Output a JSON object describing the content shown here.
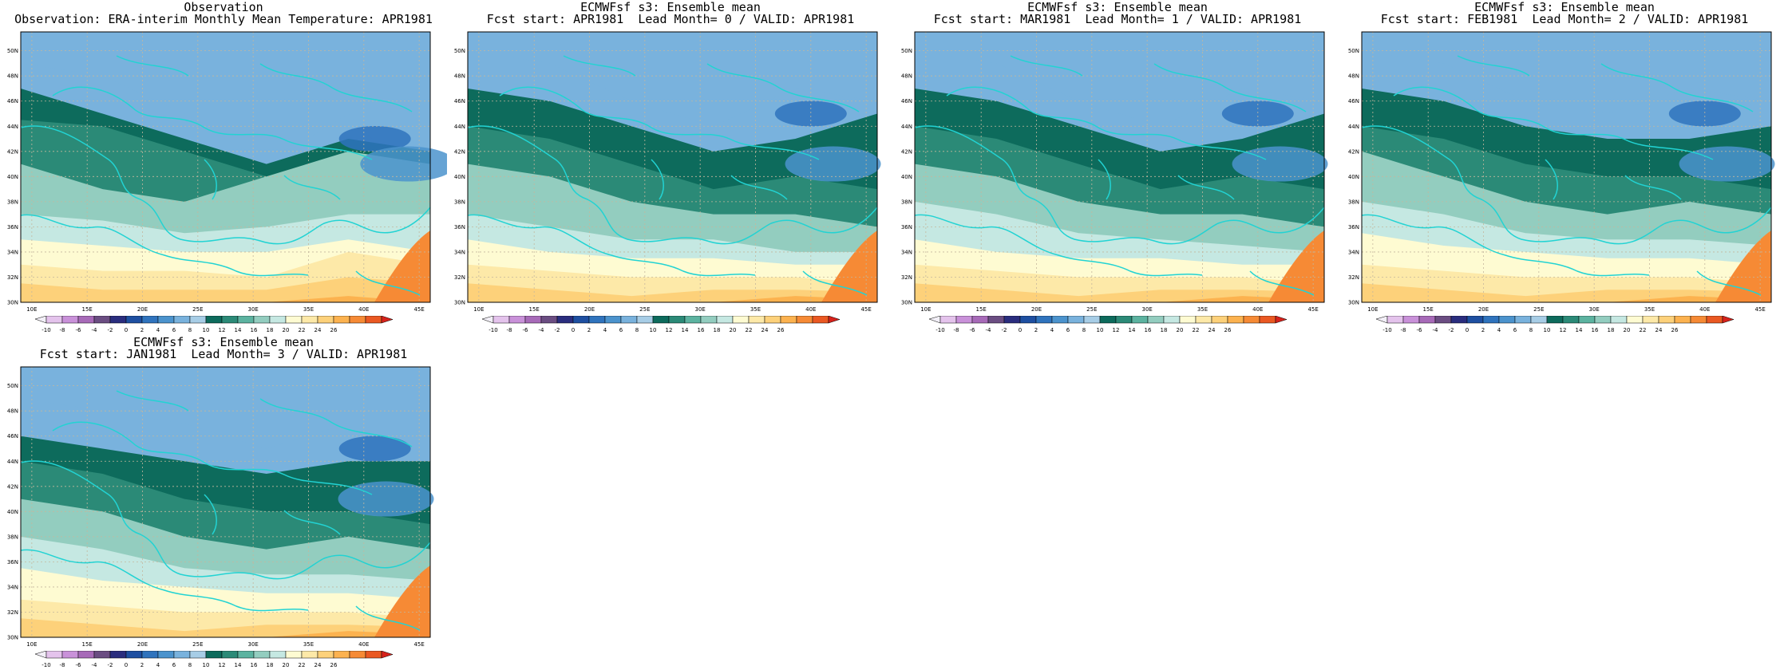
{
  "colors": {
    "levels": [
      -10,
      -8,
      -6,
      -4,
      -2,
      0,
      2,
      4,
      6,
      8,
      10,
      12,
      14,
      16,
      18,
      20,
      22,
      24,
      26
    ],
    "fills": [
      "#f2eff7",
      "#e4c3ec",
      "#c991d9",
      "#a76ab8",
      "#6b4d82",
      "#2a2d7e",
      "#1e4fa1",
      "#2f73bd",
      "#4b93cd",
      "#79b2dd",
      "#a7cde6",
      "#0d6b5c",
      "#2b8a77",
      "#5cb3a0",
      "#93cdbf",
      "#c5e8e2",
      "#fefbd2",
      "#fde9a8",
      "#fdd17a",
      "#fcb24f",
      "#f68a35",
      "#ea5822",
      "#d6221b"
    ],
    "coast": "#22d3d3",
    "grid": "#c4b79d"
  },
  "axes": {
    "lon_ticks": [
      "10E",
      "15E",
      "20E",
      "25E",
      "30E",
      "35E",
      "40E",
      "45E"
    ],
    "lat_ticks": [
      "30N",
      "32N",
      "34N",
      "36N",
      "38N",
      "40N",
      "42N",
      "44N",
      "46N",
      "48N",
      "50N"
    ]
  },
  "colorbar_labels": [
    "-10",
    "-8",
    "-6",
    "-4",
    "-2",
    "0",
    "2",
    "4",
    "6",
    "8",
    "10",
    "12",
    "14",
    "16",
    "18",
    "20",
    "22",
    "24",
    "26"
  ],
  "panels": [
    {
      "title1": "Observation",
      "title2": "Observation: ERA-interim Monthly Mean Temperature: APR1981",
      "bands": [
        [
          49,
          48,
          45,
          41,
          45,
          38
        ],
        [
          47,
          45,
          43,
          41,
          43,
          42
        ],
        [
          44.5,
          44,
          42,
          40,
          41,
          38
        ],
        [
          41,
          39,
          38,
          40,
          42,
          41
        ],
        [
          37,
          36.5,
          35.5,
          36,
          37,
          37
        ],
        [
          35,
          34.5,
          34,
          34,
          35,
          34
        ],
        [
          33,
          32.5,
          32.5,
          32,
          34,
          33
        ],
        [
          31.5,
          31,
          31,
          31,
          32,
          31.5
        ],
        [
          30,
          30,
          30,
          30,
          30.5,
          30
        ]
      ],
      "extra": [
        [
          43,
          41
        ],
        [
          41,
          44
        ]
      ]
    },
    {
      "title1": "ECMWFsf s3: Ensemble mean",
      "title2": "Fcst start: APR1981  Lead Month= 0 / VALID: APR1981",
      "bands": [
        [
          50,
          49,
          46,
          44,
          47,
          46
        ],
        [
          47,
          46,
          44,
          42,
          43,
          45
        ],
        [
          44,
          43,
          41,
          39,
          40,
          39
        ],
        [
          41,
          40,
          38,
          37,
          37,
          36
        ],
        [
          37,
          36,
          35,
          35,
          34,
          34
        ],
        [
          35,
          34,
          33.5,
          33.5,
          33,
          33
        ],
        [
          33,
          32.5,
          32,
          32,
          32,
          31.5
        ],
        [
          31.5,
          31,
          30.5,
          31,
          31,
          30.8
        ],
        [
          30,
          30,
          30,
          30,
          30.5,
          30.2
        ]
      ],
      "extra": [
        [
          45,
          40
        ],
        [
          41,
          42
        ]
      ]
    },
    {
      "title1": "ECMWFsf s3: Ensemble mean",
      "title2": "Fcst start: MAR1981  Lead Month= 1 / VALID: APR1981",
      "bands": [
        [
          50,
          49,
          46,
          44,
          47,
          46
        ],
        [
          47,
          46,
          44,
          42,
          43,
          45
        ],
        [
          44,
          43,
          41,
          39,
          40,
          39
        ],
        [
          41,
          40,
          38,
          37,
          37,
          36
        ],
        [
          38,
          37,
          35.5,
          35,
          34.5,
          34
        ],
        [
          35,
          34,
          33.5,
          33.5,
          33,
          33
        ],
        [
          33,
          32.5,
          32,
          32,
          32,
          31.5
        ],
        [
          31.5,
          31,
          30.5,
          31,
          31,
          30.8
        ],
        [
          30,
          30,
          30,
          30,
          30.5,
          30.2
        ]
      ],
      "extra": [
        [
          45,
          40
        ],
        [
          41,
          42
        ]
      ]
    },
    {
      "title1": "ECMWFsf s3: Ensemble mean",
      "title2": "Fcst start: FEB1981  Lead Month= 2 / VALID: APR1981",
      "bands": [
        [
          50,
          49,
          46,
          45,
          47,
          46
        ],
        [
          47,
          46,
          44,
          43,
          43,
          44
        ],
        [
          44,
          43,
          41,
          40,
          40,
          39
        ],
        [
          42,
          40,
          38,
          37,
          38,
          37
        ],
        [
          38,
          37,
          35.5,
          35,
          35,
          34.5
        ],
        [
          35.5,
          34.5,
          34,
          33.5,
          33.5,
          33
        ],
        [
          33,
          32.5,
          32,
          32,
          32,
          31.5
        ],
        [
          31.5,
          31,
          30.5,
          31,
          31,
          30.8
        ],
        [
          30,
          30,
          30,
          30,
          30.5,
          30.2
        ]
      ],
      "extra": [
        [
          45,
          40
        ],
        [
          41,
          42
        ]
      ]
    },
    {
      "title1": "ECMWFsf s3: Ensemble mean",
      "title2": "Fcst start: JAN1981  Lead Month= 3 / VALID: APR1981",
      "bands": [
        [
          49,
          48,
          47,
          45,
          47,
          47
        ],
        [
          46,
          45,
          44,
          43,
          44,
          44
        ],
        [
          44,
          43,
          41,
          40,
          40,
          39
        ],
        [
          41,
          40,
          38,
          37,
          38,
          37
        ],
        [
          38,
          37,
          35.5,
          35,
          35,
          34.5
        ],
        [
          35.5,
          34.5,
          34,
          33.5,
          33.5,
          33
        ],
        [
          33,
          32.5,
          32,
          32,
          32,
          31.5
        ],
        [
          31.5,
          31,
          30.5,
          31,
          31,
          30.8
        ],
        [
          30,
          30,
          30,
          30,
          30.5,
          30.2
        ]
      ],
      "extra": [
        [
          45,
          41
        ],
        [
          41,
          42
        ]
      ]
    }
  ]
}
